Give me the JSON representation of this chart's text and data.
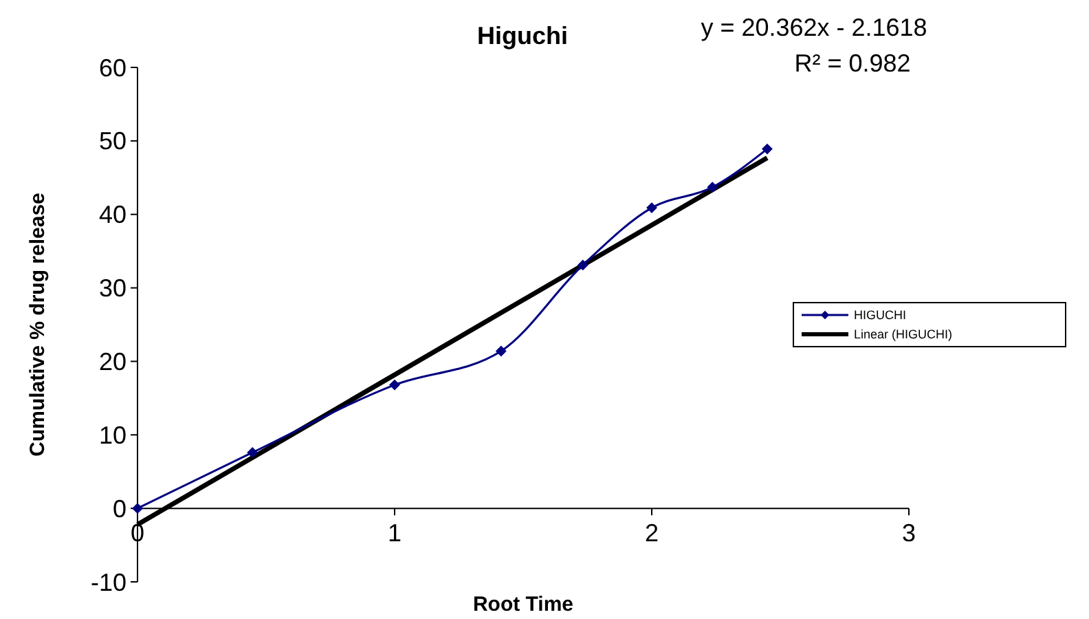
{
  "chart_data": {
    "type": "line",
    "title": "Higuchi",
    "xlabel": "Root Time",
    "ylabel": "Cumulative % drug release",
    "annotations": [
      "y = 20.362x - 2.1618",
      "R² = 0.982"
    ],
    "xlim": [
      0,
      3
    ],
    "xticks": [
      0,
      1,
      2,
      3
    ],
    "ylim": [
      -10,
      60
    ],
    "yticks": [
      -10,
      0,
      10,
      20,
      30,
      40,
      50,
      60
    ],
    "grid": false,
    "legend": "right",
    "series": [
      {
        "name": "HIGUCHI",
        "color": "#000080",
        "marker": "diamond",
        "x": [
          0,
          0.447,
          1,
          1.414,
          1.732,
          2,
          2.236,
          2.449
        ],
        "values": [
          0,
          7.6,
          16.8,
          21.4,
          33.1,
          40.9,
          43.7,
          48.9
        ]
      },
      {
        "name": "Linear (HIGUCHI)",
        "color": "#000000",
        "type": "line",
        "marker": "none",
        "x": [
          0,
          2.449
        ],
        "values": [
          -2.2,
          47.7
        ]
      }
    ]
  }
}
